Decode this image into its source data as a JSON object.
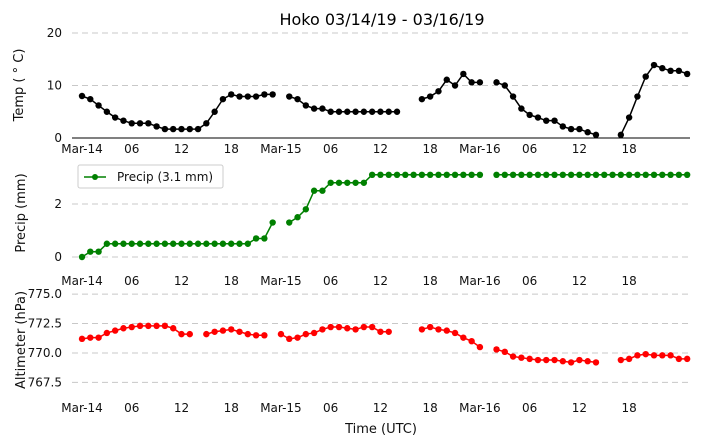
{
  "chart_data": [
    {
      "type": "line",
      "title": "Hoko 03/14/19 - 03/16/19",
      "ylabel": "Temp ($^\\circ$C)",
      "ylabel_display": "Temp ( ° C)",
      "ylim": [
        0,
        20
      ],
      "yticks": [
        "0",
        "10",
        "20"
      ],
      "yticks_values": [
        0,
        10,
        20
      ],
      "color": "#000000",
      "xticks": [
        "Mar-14",
        "06",
        "12",
        "18",
        "Mar-15",
        "06",
        "12",
        "18",
        "Mar-16",
        "06",
        "12",
        "18"
      ],
      "x_hours_from_start": "hourly 0..73",
      "values": [
        8.0,
        7.4,
        6.2,
        5.0,
        3.9,
        3.3,
        2.8,
        2.8,
        2.8,
        2.2,
        1.7,
        1.7,
        1.7,
        1.7,
        1.7,
        2.8,
        5.0,
        7.4,
        8.3,
        7.9,
        7.9,
        7.9,
        8.3,
        8.3,
        null,
        7.9,
        7.4,
        6.2,
        5.6,
        5.6,
        5.0,
        5.0,
        5.0,
        5.0,
        5.0,
        5.0,
        5.0,
        5.0,
        5.0,
        null,
        null,
        7.4,
        7.9,
        8.9,
        11.1,
        10.0,
        12.2,
        10.6,
        10.6,
        null,
        10.6,
        10.0,
        7.9,
        5.6,
        4.4,
        3.9,
        3.3,
        3.3,
        2.2,
        1.7,
        1.7,
        1.1,
        0.6,
        null,
        null,
        0.6,
        3.9,
        7.9,
        11.7,
        13.9,
        13.3,
        12.8,
        12.8,
        12.2
      ]
    },
    {
      "type": "line",
      "ylabel": "Precip (mm)",
      "ylim": [
        0,
        3.3
      ],
      "yticks": [
        "0",
        "2"
      ],
      "yticks_values": [
        0,
        2
      ],
      "color": "#008000",
      "legend": "Precip (3.1 mm)",
      "legend_position": "upper-left",
      "xticks": [
        "Mar-14",
        "06",
        "12",
        "18",
        "Mar-15",
        "06",
        "12",
        "18",
        "Mar-16",
        "06",
        "12",
        "18"
      ],
      "values": [
        0,
        0.2,
        0.2,
        0.5,
        0.5,
        0.5,
        0.5,
        0.5,
        0.5,
        0.5,
        0.5,
        0.5,
        0.5,
        0.5,
        0.5,
        0.5,
        0.5,
        0.5,
        0.5,
        0.5,
        0.5,
        0.7,
        0.7,
        1.3,
        null,
        1.3,
        1.5,
        1.8,
        2.5,
        2.5,
        2.8,
        2.8,
        2.8,
        2.8,
        2.8,
        3.1,
        3.1,
        3.1,
        3.1,
        3.1,
        3.1,
        3.1,
        3.1,
        3.1,
        3.1,
        3.1,
        3.1,
        3.1,
        3.1,
        null,
        3.1,
        3.1,
        3.1,
        3.1,
        3.1,
        3.1,
        3.1,
        3.1,
        3.1,
        3.1,
        3.1,
        3.1,
        3.1,
        3.1,
        3.1,
        3.1,
        3.1,
        3.1,
        3.1,
        3.1,
        3.1,
        3.1,
        3.1,
        3.1
      ]
    },
    {
      "type": "line",
      "ylabel": "Altimeter (hPa)",
      "xlabel": "Time (UTC)",
      "ylim": [
        765.5,
        775
      ],
      "yticks": [
        "767.5",
        "770.0",
        "772.5",
        "775.0"
      ],
      "yticks_values": [
        767.5,
        770,
        772.5,
        775
      ],
      "color": "#ff0000",
      "xticks": [
        "Mar-14",
        "06",
        "12",
        "18",
        "Mar-15",
        "06",
        "12",
        "18",
        "Mar-16",
        "06",
        "12",
        "18"
      ],
      "values": [
        771.2,
        771.3,
        771.3,
        771.7,
        771.9,
        772.1,
        772.2,
        772.3,
        772.3,
        772.3,
        772.3,
        772.1,
        771.6,
        771.6,
        null,
        771.6,
        771.8,
        771.9,
        772.0,
        771.8,
        771.6,
        771.5,
        771.5,
        null,
        771.6,
        771.2,
        771.3,
        771.6,
        771.7,
        772.0,
        772.2,
        772.2,
        772.1,
        772.0,
        772.2,
        772.2,
        771.8,
        771.8,
        null,
        null,
        null,
        772.0,
        772.2,
        772.0,
        771.9,
        771.7,
        771.3,
        771.0,
        770.5,
        null,
        770.3,
        770.1,
        769.7,
        769.6,
        769.5,
        769.4,
        769.4,
        769.4,
        769.3,
        769.2,
        769.4,
        769.3,
        769.2,
        null,
        null,
        769.4,
        769.5,
        769.8,
        769.9,
        769.8,
        769.8,
        769.8,
        769.5,
        769.5
      ]
    }
  ]
}
